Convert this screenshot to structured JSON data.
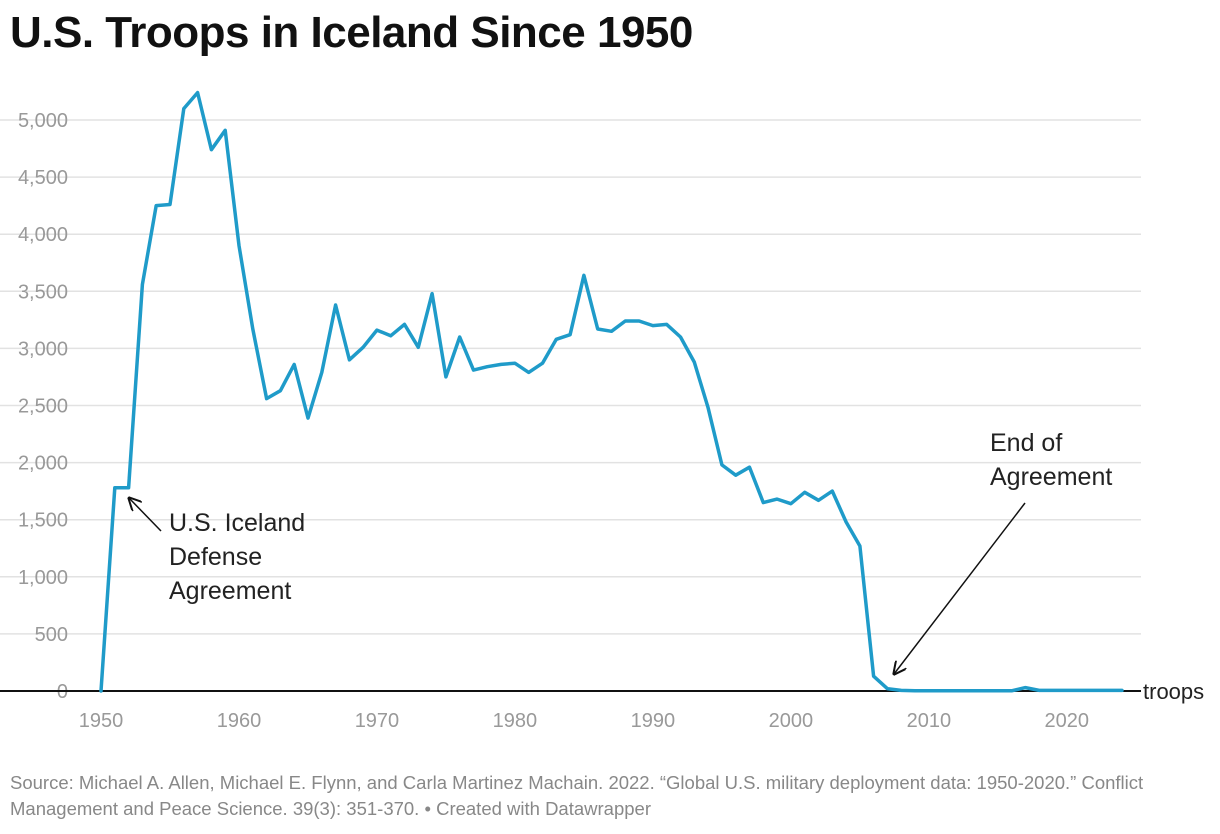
{
  "title": "U.S. Troops in Iceland Since 1950",
  "source": "Source: Michael A. Allen, Michael E. Flynn, and Carla Martinez Machain. 2022. “Global U.S. military deployment data: 1950-2020.” Conflict Management and Peace Science. 39(3): 351-370. • Created with Datawrapper",
  "colors": {
    "line": "#1f9bc9",
    "grid": "#e2e2e2",
    "axis": "#111111",
    "tick_text": "#999999"
  },
  "chart_data": {
    "type": "line",
    "title": "U.S. Troops in Iceland Since 1950",
    "xlabel": "",
    "ylabel": "",
    "unit_label": "troops",
    "xlim": [
      1950,
      2024
    ],
    "ylim": [
      0,
      5250
    ],
    "grid": true,
    "x_ticks": [
      1950,
      1960,
      1970,
      1980,
      1990,
      2000,
      2010,
      2020
    ],
    "y_ticks": [
      0,
      500,
      1000,
      1500,
      2000,
      2500,
      3000,
      3500,
      4000,
      4500,
      5000
    ],
    "series": [
      {
        "x": [
          1950,
          1951,
          1952,
          1953,
          1954,
          1955,
          1956,
          1957,
          1958,
          1959,
          1960,
          1961,
          1962,
          1963,
          1964,
          1965,
          1966,
          1967,
          1968,
          1969,
          1970,
          1971,
          1972,
          1973,
          1974,
          1975,
          1976,
          1977,
          1978,
          1979,
          1980,
          1981,
          1982,
          1983,
          1984,
          1985,
          1986,
          1987,
          1988,
          1989,
          1990,
          1991,
          1992,
          1993,
          1994,
          1995,
          1996,
          1997,
          1998,
          1999,
          2000,
          2001,
          2002,
          2003,
          2004,
          2005,
          2006,
          2007,
          2008,
          2009,
          2010,
          2011,
          2012,
          2013,
          2014,
          2015,
          2016,
          2017,
          2018,
          2019,
          2020,
          2021,
          2022,
          2023,
          2024
        ],
        "values": [
          0,
          1780,
          1780,
          3560,
          4250,
          4260,
          5100,
          5240,
          4740,
          4910,
          3900,
          3170,
          2560,
          2630,
          2860,
          2390,
          2790,
          3380,
          2900,
          3010,
          3160,
          3110,
          3210,
          3010,
          3480,
          2750,
          3100,
          2810,
          2840,
          2860,
          2870,
          2790,
          2870,
          3080,
          3120,
          3640,
          3170,
          3150,
          3240,
          3240,
          3200,
          3210,
          3100,
          2880,
          2480,
          1980,
          1890,
          1960,
          1650,
          1680,
          1640,
          1740,
          1670,
          1750,
          1480,
          1270,
          130,
          20,
          5,
          2,
          2,
          2,
          2,
          2,
          2,
          2,
          2,
          30,
          5,
          5,
          5,
          5,
          5,
          5,
          5
        ]
      }
    ],
    "annotations": [
      {
        "lines": [
          "U.S. Iceland",
          "Defense",
          "Agreement"
        ],
        "x": 1952,
        "y": 1780
      },
      {
        "lines": [
          "End of",
          "Agreement"
        ],
        "x": 2007,
        "y": 130
      }
    ]
  }
}
